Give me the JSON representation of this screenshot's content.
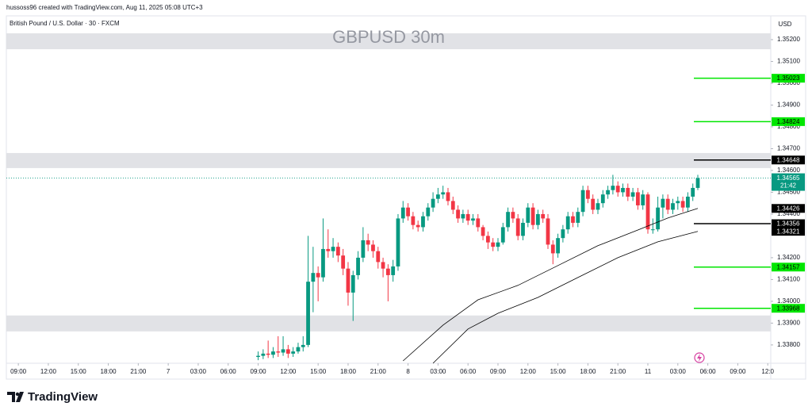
{
  "header": {
    "credit": "hussoss96 created with TradingView.com, Aug 11, 2025 05:08 UTC+3",
    "logo": "TradingView"
  },
  "chart_data": {
    "type": "candlestick",
    "title": "GBPUSD 30m",
    "subtitle": "British Pound / U.S. Dollar · 30 · FXCM",
    "currency": "USD",
    "countdown": "21:42",
    "up_color": "#089981",
    "down_color": "#f23645",
    "x": [
      48,
      49,
      50,
      51,
      52,
      53,
      54,
      55,
      56,
      57,
      58,
      59,
      60,
      61,
      62,
      63,
      64,
      65,
      66,
      67,
      68,
      69,
      70,
      71,
      72,
      73,
      74,
      75,
      76,
      77,
      78,
      79,
      80,
      81,
      82,
      83,
      84,
      85,
      86,
      87,
      88,
      89,
      90,
      91,
      92,
      93,
      94,
      95,
      96,
      97,
      98,
      99,
      100,
      101,
      102,
      103,
      104,
      105,
      106,
      107,
      108,
      109,
      110,
      111,
      112,
      113,
      114,
      115,
      116,
      117,
      118,
      119,
      120,
      121,
      122,
      123,
      124,
      125,
      126,
      127,
      128,
      129,
      130,
      131,
      132,
      133,
      134,
      135,
      136
    ],
    "open": [
      1.33745,
      1.3375,
      1.3376,
      1.33755,
      1.3377,
      1.33765,
      1.3378,
      1.3376,
      1.3377,
      1.3379,
      1.338,
      1.3409,
      1.3413,
      1.3411,
      1.3424,
      1.3423,
      1.3425,
      1.3421,
      1.3415,
      1.3404,
      1.3412,
      1.342,
      1.3428,
      1.3426,
      1.3423,
      1.3418,
      1.3415,
      1.3412,
      1.3416,
      1.3438,
      1.3443,
      1.3439,
      1.3435,
      1.3434,
      1.3439,
      1.3443,
      1.3447,
      1.3449,
      1.345,
      1.3446,
      1.3442,
      1.3438,
      1.344,
      1.3437,
      1.3438,
      1.3434,
      1.343,
      1.3427,
      1.3425,
      1.3427,
      1.3434,
      1.3441,
      1.3438,
      1.343,
      1.3436,
      1.3443,
      1.3435,
      1.344,
      1.3438,
      1.3426,
      1.3422,
      1.3429,
      1.3433,
      1.3439,
      1.3436,
      1.3441,
      1.3451,
      1.3447,
      1.3442,
      1.3445,
      1.3449,
      1.3451,
      1.3453,
      1.345,
      1.3452,
      1.3448,
      1.345,
      1.3444,
      1.3449,
      1.3433,
      1.3433,
      1.3443,
      1.3447,
      1.3442,
      1.3445,
      1.3446,
      1.3443,
      1.3448,
      1.3452
    ],
    "high": [
      1.3377,
      1.3378,
      1.3382,
      1.3379,
      1.3384,
      1.3384,
      1.338,
      1.3379,
      1.3381,
      1.3384,
      1.343,
      1.3425,
      1.3416,
      1.3438,
      1.3433,
      1.3429,
      1.3427,
      1.3424,
      1.3418,
      1.3414,
      1.3423,
      1.3434,
      1.3431,
      1.3428,
      1.3425,
      1.342,
      1.3417,
      1.3419,
      1.344,
      1.3446,
      1.3445,
      1.3441,
      1.3437,
      1.3441,
      1.3445,
      1.345,
      1.3452,
      1.3453,
      1.3452,
      1.3448,
      1.3444,
      1.3442,
      1.3442,
      1.344,
      1.344,
      1.3435,
      1.3432,
      1.3429,
      1.3429,
      1.3436,
      1.3443,
      1.3443,
      1.344,
      1.3438,
      1.3445,
      1.3445,
      1.3442,
      1.3442,
      1.344,
      1.3428,
      1.3431,
      1.3435,
      1.3441,
      1.3441,
      1.3443,
      1.3453,
      1.3453,
      1.3449,
      1.3447,
      1.3451,
      1.3453,
      1.3458,
      1.3455,
      1.3454,
      1.3454,
      1.3452,
      1.3452,
      1.3451,
      1.345,
      1.3438,
      1.3448,
      1.3449,
      1.3449,
      1.3447,
      1.3448,
      1.3448,
      1.345,
      1.3454,
      1.3458
    ],
    "low": [
      1.3373,
      1.33735,
      1.3374,
      1.3374,
      1.33745,
      1.3375,
      1.3374,
      1.33745,
      1.3376,
      1.3377,
      1.3379,
      1.3395,
      1.34,
      1.3409,
      1.342,
      1.342,
      1.3418,
      1.3412,
      1.3398,
      1.3391,
      1.341,
      1.3418,
      1.3423,
      1.342,
      1.3415,
      1.3411,
      1.34,
      1.3409,
      1.3414,
      1.3436,
      1.3437,
      1.3433,
      1.3432,
      1.3432,
      1.3437,
      1.3441,
      1.3445,
      1.3447,
      1.3444,
      1.344,
      1.3436,
      1.3436,
      1.3435,
      1.3435,
      1.3432,
      1.3428,
      1.3424,
      1.3423,
      1.3423,
      1.3426,
      1.3432,
      1.3436,
      1.3428,
      1.3428,
      1.3434,
      1.3433,
      1.3433,
      1.3436,
      1.3424,
      1.3417,
      1.342,
      1.3427,
      1.3431,
      1.3434,
      1.3434,
      1.3439,
      1.3445,
      1.344,
      1.344,
      1.3443,
      1.3447,
      1.3449,
      1.3448,
      1.3448,
      1.3446,
      1.3446,
      1.3442,
      1.3442,
      1.3431,
      1.3431,
      1.3432,
      1.3438,
      1.344,
      1.344,
      1.3442,
      1.3441,
      1.3441,
      1.3446,
      1.3451
    ],
    "close": [
      1.3375,
      1.3376,
      1.33755,
      1.3377,
      1.33765,
      1.3378,
      1.3376,
      1.3377,
      1.3379,
      1.338,
      1.3409,
      1.3413,
      1.3411,
      1.3424,
      1.3423,
      1.3425,
      1.3421,
      1.3415,
      1.3404,
      1.3412,
      1.342,
      1.3428,
      1.3426,
      1.3423,
      1.3418,
      1.3415,
      1.3412,
      1.3416,
      1.3438,
      1.3443,
      1.3439,
      1.3435,
      1.3434,
      1.3439,
      1.3443,
      1.3447,
      1.3449,
      1.345,
      1.3446,
      1.3442,
      1.3438,
      1.344,
      1.3437,
      1.3438,
      1.3434,
      1.343,
      1.3427,
      1.3425,
      1.3427,
      1.3434,
      1.3441,
      1.3438,
      1.343,
      1.3436,
      1.3443,
      1.3435,
      1.344,
      1.3438,
      1.3426,
      1.3422,
      1.3429,
      1.3433,
      1.3439,
      1.3436,
      1.3441,
      1.3451,
      1.3447,
      1.3442,
      1.3445,
      1.3449,
      1.3451,
      1.3453,
      1.345,
      1.3452,
      1.3448,
      1.345,
      1.3444,
      1.3449,
      1.3433,
      1.3433,
      1.3443,
      1.3447,
      1.3442,
      1.3445,
      1.3446,
      1.3443,
      1.3448,
      1.3452,
      1.34565
    ],
    "lines": [
      {
        "color": "#000000",
        "x": [
          77,
          85,
          92,
          100,
          108,
          116,
          124,
          130,
          136
        ],
        "values": [
          1.33727,
          1.33891,
          1.34007,
          1.34073,
          1.34164,
          1.34255,
          1.34327,
          1.34382,
          1.34426
        ]
      },
      {
        "color": "#000000",
        "x": [
          83,
          90,
          96,
          104,
          112,
          120,
          128,
          136
        ],
        "values": [
          1.33716,
          1.33873,
          1.33945,
          1.34018,
          1.34109,
          1.342,
          1.34273,
          1.34321
        ]
      }
    ],
    "levels": [
      {
        "value": 1.35023,
        "color": "#00e600"
      },
      {
        "value": 1.34824,
        "color": "#00e600"
      },
      {
        "value": 1.34648,
        "color": "#000000"
      },
      {
        "value": 1.34356,
        "color": "#000000"
      },
      {
        "value": 1.34157,
        "color": "#00e600"
      },
      {
        "value": 1.33968,
        "color": "#00e600"
      }
    ],
    "zones": [
      {
        "from": 1.35156,
        "to": 1.35229,
        "color": "#e1e2e6"
      },
      {
        "from": 1.34611,
        "to": 1.3468,
        "color": "#e1e2e6"
      },
      {
        "from": 1.33862,
        "to": 1.33935,
        "color": "#e1e2e6"
      }
    ],
    "xlim": [
      -2.4,
      150.6
    ],
    "xticks": [
      {
        "value": 0,
        "label": "09:00"
      },
      {
        "value": 6,
        "label": "12:00"
      },
      {
        "value": 12,
        "label": "15:00"
      },
      {
        "value": 18,
        "label": "18:00"
      },
      {
        "value": 24,
        "label": "21:00"
      },
      {
        "value": 30,
        "label": "7"
      },
      {
        "value": 36,
        "label": "03:00"
      },
      {
        "value": 42,
        "label": "06:00"
      },
      {
        "value": 48,
        "label": "09:00"
      },
      {
        "value": 54,
        "label": "12:00"
      },
      {
        "value": 60,
        "label": "15:00"
      },
      {
        "value": 66,
        "label": "18:00"
      },
      {
        "value": 72,
        "label": "21:00"
      },
      {
        "value": 78,
        "label": "8"
      },
      {
        "value": 84,
        "label": "03:00"
      },
      {
        "value": 90,
        "label": "06:00"
      },
      {
        "value": 96,
        "label": "09:00"
      },
      {
        "value": 102,
        "label": "12:00"
      },
      {
        "value": 108,
        "label": "15:00"
      },
      {
        "value": 114,
        "label": "18:00"
      },
      {
        "value": 120,
        "label": "21:00"
      },
      {
        "value": 126,
        "label": "11"
      },
      {
        "value": 132,
        "label": "03:00"
      },
      {
        "value": 138,
        "label": "06:00"
      },
      {
        "value": 144,
        "label": "09:00"
      },
      {
        "value": 150,
        "label": "12:0"
      }
    ],
    "ylim": [
      1.33716,
      1.35309
    ],
    "yticks": [
      {
        "value": 1.338,
        "label": "1.33800"
      },
      {
        "value": 1.339,
        "label": "1.33900"
      },
      {
        "value": 1.34,
        "label": "1.34000"
      },
      {
        "value": 1.341,
        "label": "1.34100"
      },
      {
        "value": 1.342,
        "label": "1.34200"
      },
      {
        "value": 1.344,
        "label": "1.34400"
      },
      {
        "value": 1.345,
        "label": "1.34500"
      },
      {
        "value": 1.346,
        "label": "1.34600"
      },
      {
        "value": 1.347,
        "label": "1.34700"
      },
      {
        "value": 1.348,
        "label": "1.34800"
      },
      {
        "value": 1.349,
        "label": "1.34900"
      },
      {
        "value": 1.35,
        "label": "1.35000"
      },
      {
        "value": 1.351,
        "label": "1.35100"
      },
      {
        "value": 1.352,
        "label": "1.35200"
      }
    ]
  }
}
